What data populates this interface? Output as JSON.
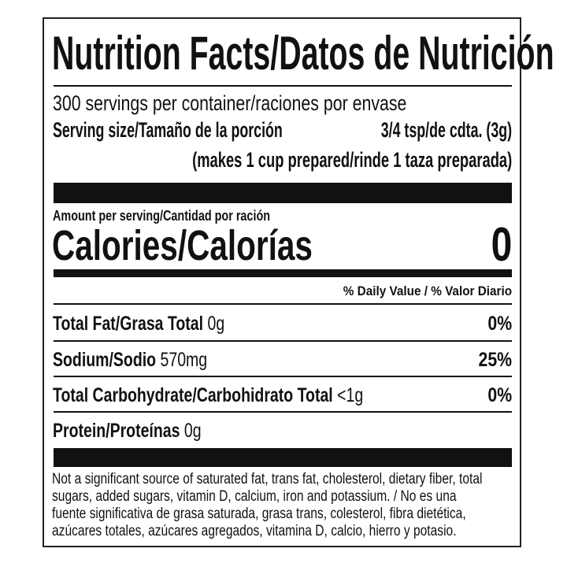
{
  "title": "Nutrition Facts/Datos de Nutrición",
  "servings_per_container": "300 servings per container/raciones por envase",
  "serving_size": {
    "label": "Serving size/Tamaño de la porción",
    "value": "3/4 tsp/de cdta. (3g)",
    "note": "(makes 1 cup prepared/rinde 1 taza preparada)"
  },
  "amount_per_serving": "Amount per serving/Cantidad por ración",
  "calories": {
    "label": "Calories/Calorías",
    "value": "0"
  },
  "daily_value_header": "% Daily Value / % Valor Diario",
  "nutrients": [
    {
      "label": "Total Fat/Grasa Total",
      "amount": "0g",
      "dv": "0%"
    },
    {
      "label": "Sodium/Sodio",
      "amount": "570mg",
      "dv": "25%"
    },
    {
      "label": "Total Carbohydrate/Carbohidrato Total",
      "amount": "<1g",
      "dv": "0%"
    },
    {
      "label": "Protein/Proteínas",
      "amount": "0g",
      "dv": ""
    }
  ],
  "footnote_lines": [
    "Not a significant source of saturated fat, trans fat, cholesterol, dietary fiber, total",
    "sugars, added sugars, vitamin D, calcium, iron and potassium. / No es una",
    "fuente significativa de grasa saturada, grasa trans, colesterol, fibra dietética,",
    "azúcares totales, azúcares agregados, vitamina D, calcio, hierro y potasio."
  ]
}
